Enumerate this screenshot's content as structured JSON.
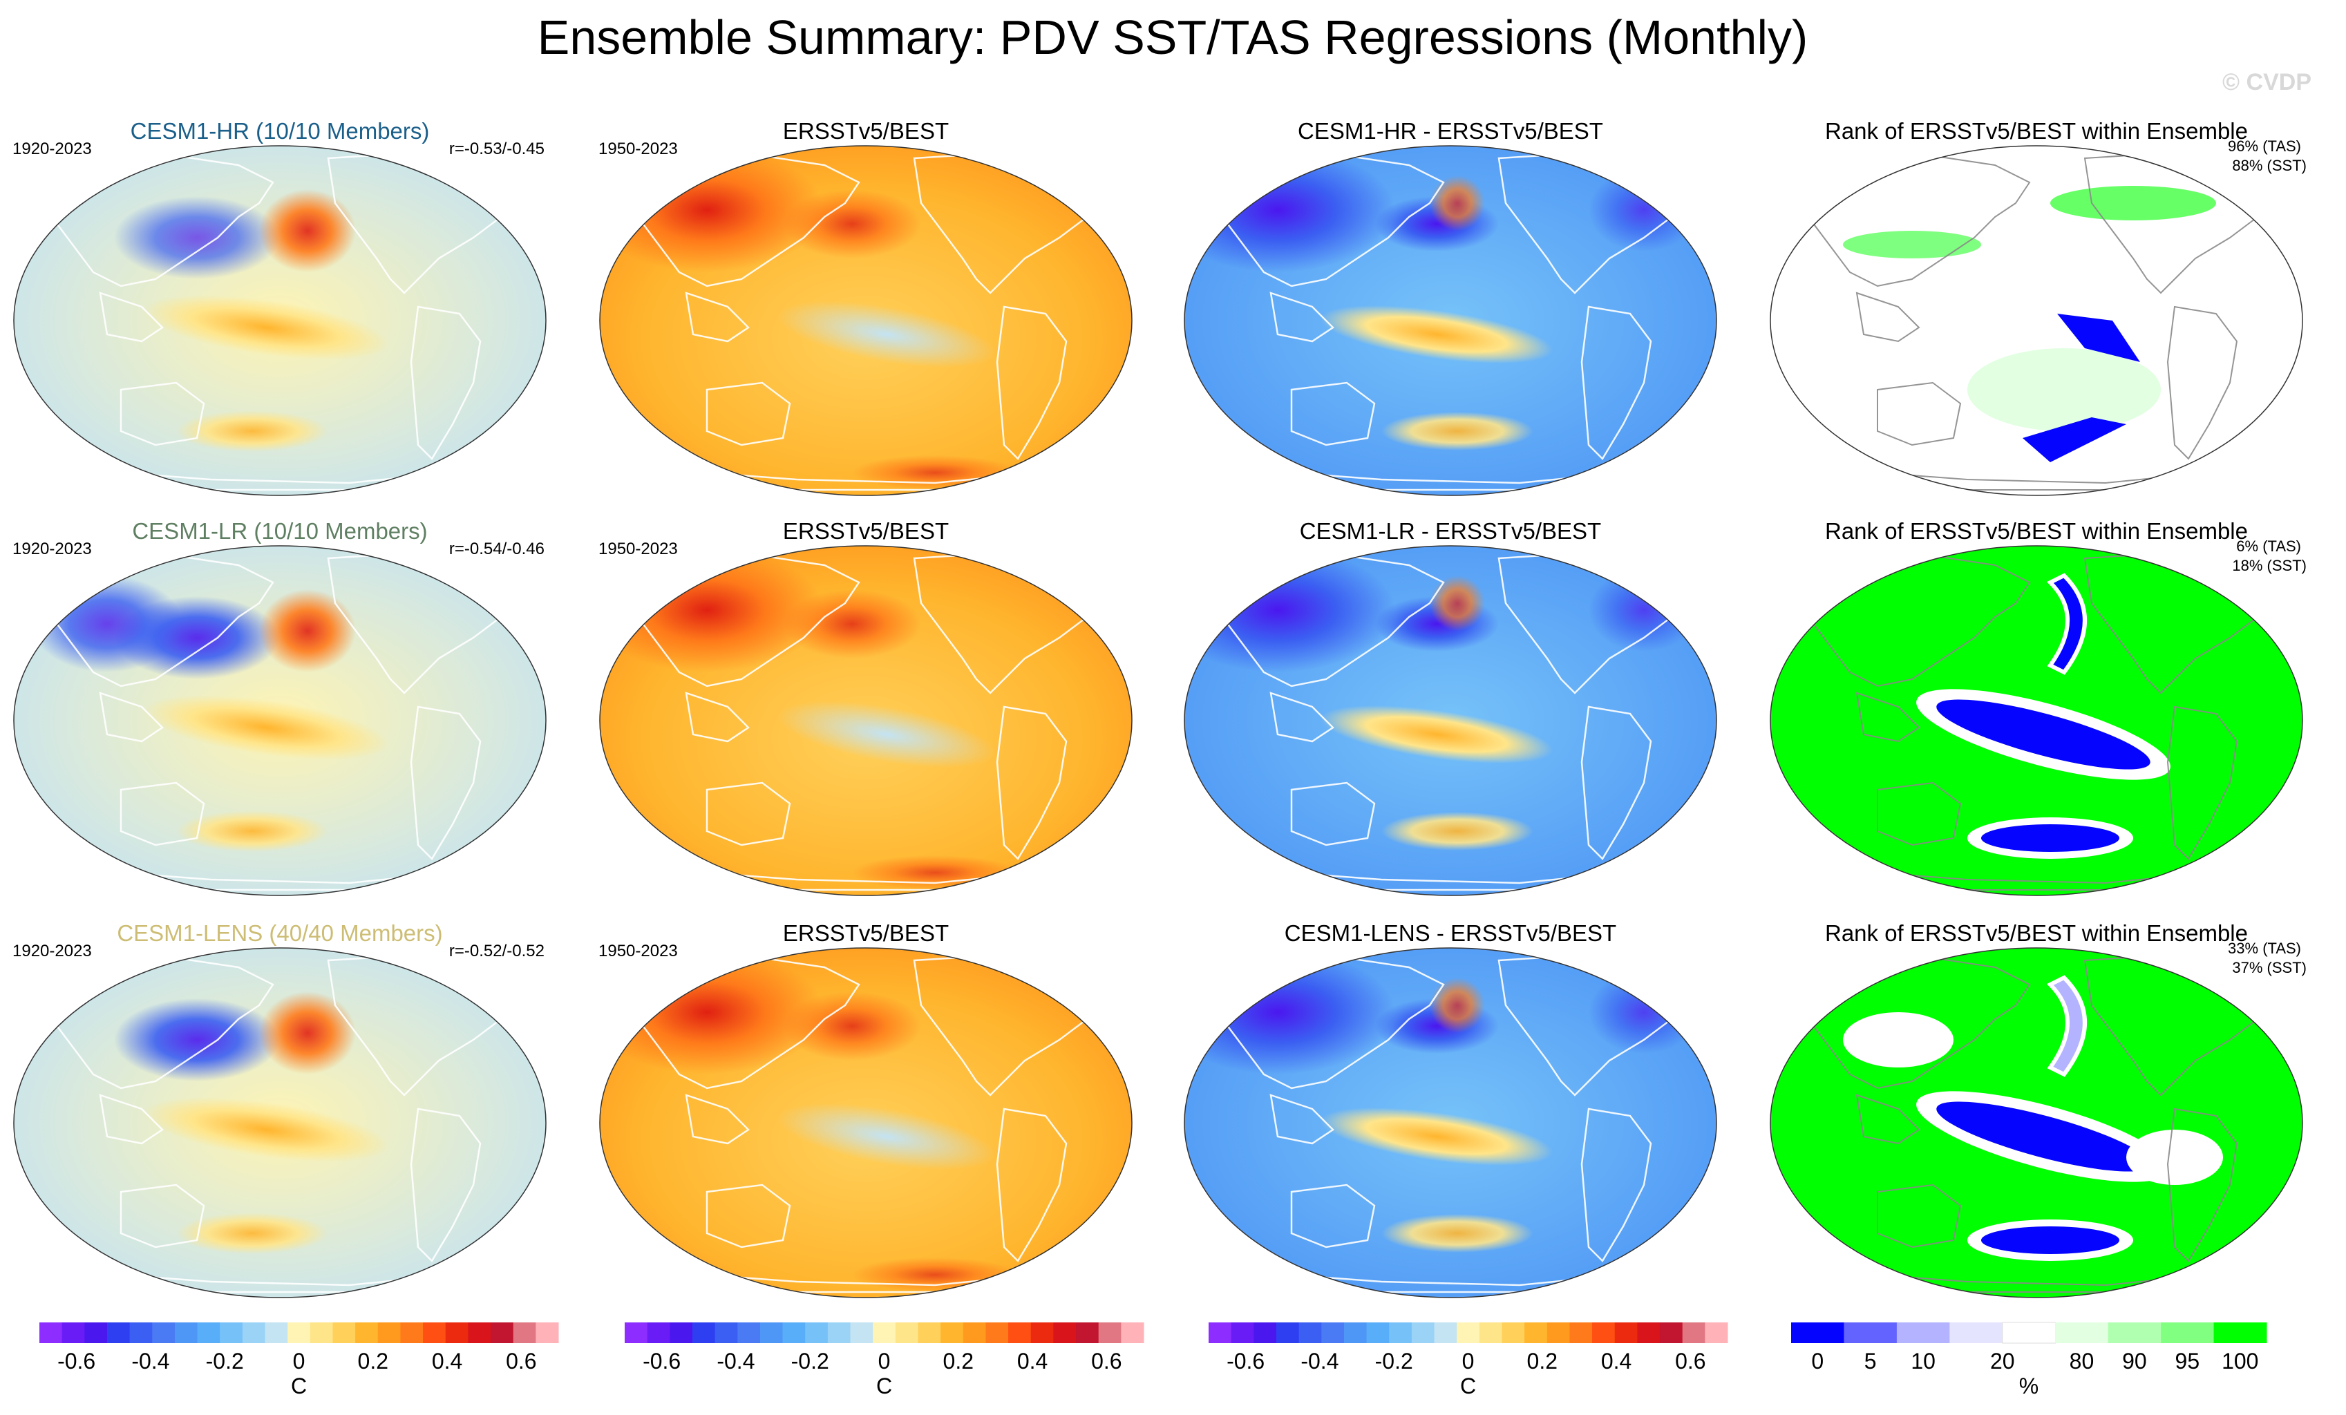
{
  "title": "Ensemble Summary: PDV SST/TAS Regressions (Monthly)",
  "watermark": "© CVDP",
  "rows": [
    {
      "model": "CESM1-HR (10/10 Members)",
      "model_color": "#1a5f8a",
      "model_years": "1920-2023",
      "pattern_corr": "r=-0.53/-0.45",
      "obs_title": "ERSSTv5/BEST",
      "obs_years": "1950-2023",
      "diff_title": "CESM1-HR - ERSSTv5/BEST",
      "rank_title": "Rank of ERSSTv5/BEST within Ensemble",
      "rank_tas": "96% (TAS)",
      "rank_sst": "88% (SST)"
    },
    {
      "model": "CESM1-LR (10/10 Members)",
      "model_color": "#5f7f62",
      "model_years": "1920-2023",
      "pattern_corr": "r=-0.54/-0.46",
      "obs_title": "ERSSTv5/BEST",
      "obs_years": "1950-2023",
      "diff_title": "CESM1-LR - ERSSTv5/BEST",
      "rank_title": "Rank of ERSSTv5/BEST within Ensemble",
      "rank_tas": "6% (TAS)",
      "rank_sst": "18% (SST)"
    },
    {
      "model": "CESM1-LENS (40/40 Members)",
      "model_color": "#cdbd74",
      "model_years": "1920-2023",
      "pattern_corr": "r=-0.52/-0.52",
      "obs_title": "ERSSTv5/BEST",
      "obs_years": "1950-2023",
      "diff_title": "CESM1-LENS - ERSSTv5/BEST",
      "rank_title": "Rank of ERSSTv5/BEST within Ensemble",
      "rank_tas": "33% (TAS)",
      "rank_sst": "37% (SST)"
    }
  ],
  "colorbars": {
    "regression": {
      "unit": "C",
      "ticks": [
        "-0.6",
        "-0.4",
        "-0.2",
        "0",
        "0.2",
        "0.4",
        "0.6"
      ],
      "colors": [
        "#8e2dff",
        "#6a1cf7",
        "#4b17ef",
        "#2e3ff2",
        "#3b5ff2",
        "#4a7af4",
        "#4f97f6",
        "#58aef8",
        "#76c2f8",
        "#9ad3f6",
        "#c4e3f3",
        "#fff4b3",
        "#ffe58a",
        "#ffd05a",
        "#ffb52e",
        "#ff9a1f",
        "#ff7a1a",
        "#ff4f12",
        "#ec2a10",
        "#d9141a",
        "#c21530",
        "#e07782",
        "#ffb2b8"
      ]
    },
    "rank": {
      "unit": "%",
      "ticks": [
        "0",
        "5",
        "10",
        "20",
        "80",
        "90",
        "95",
        "100"
      ],
      "colors": [
        "#0505ff",
        "#6363ff",
        "#b3b3ff",
        "#e4e4ff",
        "#ffffff",
        "#e2ffe2",
        "#b0ffb0",
        "#80ff80",
        "#00ff00"
      ]
    }
  },
  "chart_data": [
    {
      "type": "heatmap",
      "title": "CESM1-HR (10/10 Members)",
      "years": "1920-2023",
      "annotation": "r=-0.53/-0.45",
      "units": "C",
      "range": [
        -0.7,
        0.7
      ],
      "pattern": "PDV regression: Pacific horseshoe, weak (blue N. Pacific, warm E. Pacific tongue ~0.3)"
    },
    {
      "type": "heatmap",
      "title": "ERSSTv5/BEST",
      "years": "1950-2023",
      "units": "C",
      "range": [
        -0.7,
        0.7
      ],
      "pattern": "Warm everywhere; strong warm Eurasia/N. Pacific (~0.6), weak cool tropical tongue"
    },
    {
      "type": "heatmap",
      "title": "CESM1-HR - ERSSTv5/BEST",
      "units": "C",
      "range": [
        -0.7,
        0.7
      ],
      "pattern": "Mostly negative (~-0.3 to -0.6), warm equatorial tongue"
    },
    {
      "type": "heatmap",
      "title": "Rank of ERSSTv5/BEST within Ensemble",
      "annotation": [
        "96% (TAS)",
        "88% (SST)"
      ],
      "units": "%",
      "range": [
        0,
        100
      ],
      "pattern": "Mostly white (20-80%), blue patches in S. Pacific, green patches N. Hemisphere"
    },
    {
      "type": "heatmap",
      "title": "CESM1-LR (10/10 Members)",
      "years": "1920-2023",
      "annotation": "r=-0.54/-0.46",
      "units": "C",
      "range": [
        -0.7,
        0.7
      ],
      "pattern": "Cool N. Pacific (-0.5), warm Alaska/E. Pacific (~0.4), cool continents"
    },
    {
      "type": "heatmap",
      "title": "ERSSTv5/BEST",
      "years": "1950-2023",
      "units": "C",
      "range": [
        -0.7,
        0.7
      ],
      "pattern": "Warm everywhere; strong warm Eurasia"
    },
    {
      "type": "heatmap",
      "title": "CESM1-LR - ERSSTv5/BEST",
      "units": "C",
      "range": [
        -0.7,
        0.7
      ],
      "pattern": "Strongly negative over land (-0.7), warm equatorial tongue"
    },
    {
      "type": "heatmap",
      "title": "Rank of ERSSTv5/BEST within Ensemble",
      "annotation": [
        "6% (TAS)",
        "18% (SST)"
      ],
      "units": "%",
      "range": [
        0,
        100
      ],
      "pattern": "Mostly green (100%), blue tropical Pacific horseshoe"
    },
    {
      "type": "heatmap",
      "title": "CESM1-LENS (40/40 Members)",
      "years": "1920-2023",
      "annotation": "r=-0.52/-0.52",
      "units": "C",
      "range": [
        -0.7,
        0.7
      ],
      "pattern": "Cool N. Pacific, warm horseshoe tongue (~0.5), warm Alaska"
    },
    {
      "type": "heatmap",
      "title": "ERSSTv5/BEST",
      "years": "1950-2023",
      "units": "C",
      "range": [
        -0.7,
        0.7
      ],
      "pattern": "Warm everywhere; strong warm Eurasia"
    },
    {
      "type": "heatmap",
      "title": "CESM1-LENS - ERSSTv5/BEST",
      "units": "C",
      "range": [
        -0.7,
        0.7
      ],
      "pattern": "Negative over land, warm tropical tongue"
    },
    {
      "type": "heatmap",
      "title": "Rank of ERSSTv5/BEST within Ensemble",
      "annotation": [
        "33% (TAS)",
        "37% (SST)"
      ],
      "units": "%",
      "range": [
        0,
        100
      ],
      "pattern": "Green and white mix, blue/lavender tropical Pacific"
    }
  ]
}
